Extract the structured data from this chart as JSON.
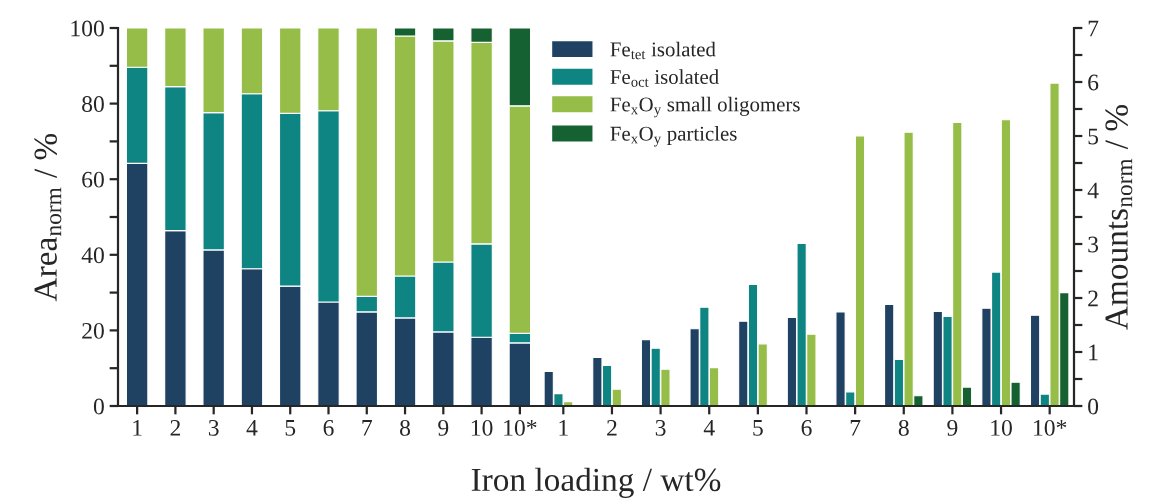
{
  "chart_data": [
    {
      "type": "bar",
      "stacked": true,
      "ylabel": "Area$_{norm}$ / %",
      "xlabel": "Iron loading / wt%",
      "categories": [
        "1",
        "2",
        "3",
        "4",
        "5",
        "6",
        "7",
        "8",
        "9",
        "10",
        "10*"
      ],
      "ylim": [
        0,
        100
      ],
      "yticks": [
        0,
        {
          "value": 10,
          "label": null
        },
        20,
        {
          "value": 30,
          "label": null
        },
        40,
        {
          "value": 50,
          "label": null
        },
        60,
        {
          "value": 70,
          "label": null
        },
        80,
        {
          "value": 90,
          "label": null
        },
        100
      ],
      "series": [
        {
          "color": "#1f4263",
          "values": [
            64.2,
            46.4,
            41.3,
            36.3,
            31.7,
            27.5,
            24.9,
            23.3,
            19.6,
            18.2,
            16.7
          ]
        },
        {
          "color": "#0e8582",
          "values": [
            25.4,
            38.1,
            36.3,
            46.3,
            45.7,
            50.6,
            4.1,
            11.1,
            18.5,
            24.7,
            2.5
          ]
        },
        {
          "color": "#95bd48",
          "values": [
            10.4,
            15.5,
            22.4,
            17.4,
            22.6,
            21.9,
            71.0,
            63.5,
            58.5,
            53.3,
            60.2
          ]
        },
        {
          "color": "#166131",
          "values": [
            null,
            null,
            null,
            null,
            null,
            null,
            null,
            2.1,
            3.4,
            3.8,
            20.6
          ]
        }
      ]
    },
    {
      "type": "bar",
      "y2label": "Amounts$_{norm}$ / %",
      "legend": "top left",
      "categories": [
        "1",
        "2",
        "3",
        "4",
        "5",
        "6",
        "7",
        "8",
        "9",
        "10",
        "10*"
      ],
      "y2lim": [
        0,
        7
      ],
      "y2ticks": [
        0,
        {
          "value": 0.5,
          "label": null
        },
        1,
        {
          "value": 1.5,
          "label": null
        },
        2,
        {
          "value": 2.5,
          "label": null
        },
        3,
        {
          "value": 3.5,
          "label": null
        },
        4,
        {
          "value": 4.5,
          "label": null
        },
        5,
        {
          "value": 5.5,
          "label": null
        },
        6,
        {
          "value": 6.5,
          "label": null
        },
        7
      ],
      "series": [
        {
          "name": "Fe$_{tet}$ isolated",
          "axis": "y2",
          "color": "#1f4263",
          "values": [
            0.64,
            0.9,
            1.23,
            1.43,
            1.57,
            1.64,
            1.74,
            1.88,
            1.75,
            1.81,
            1.68
          ]
        },
        {
          "name": "Fe$_{oct}$ isolated",
          "axis": "y2",
          "color": "#0e8582",
          "values": [
            0.23,
            0.75,
            1.07,
            1.83,
            2.25,
            3.01,
            0.26,
            0.86,
            1.66,
            2.48,
            0.22
          ]
        },
        {
          "name": "Fe$_{x}$O$_{y}$ small oligomers",
          "axis": "y2",
          "color": "#95bd48",
          "values": [
            0.08,
            0.31,
            0.68,
            0.71,
            1.15,
            1.33,
            5.0,
            5.07,
            5.25,
            5.3,
            5.98
          ]
        },
        {
          "name": "Fe$_{x}$O$_{y}$ particles",
          "axis": "y2",
          "color": "#166131",
          "values": [
            null,
            null,
            null,
            null,
            null,
            null,
            null,
            0.19,
            0.35,
            0.44,
            2.1
          ]
        }
      ]
    }
  ]
}
